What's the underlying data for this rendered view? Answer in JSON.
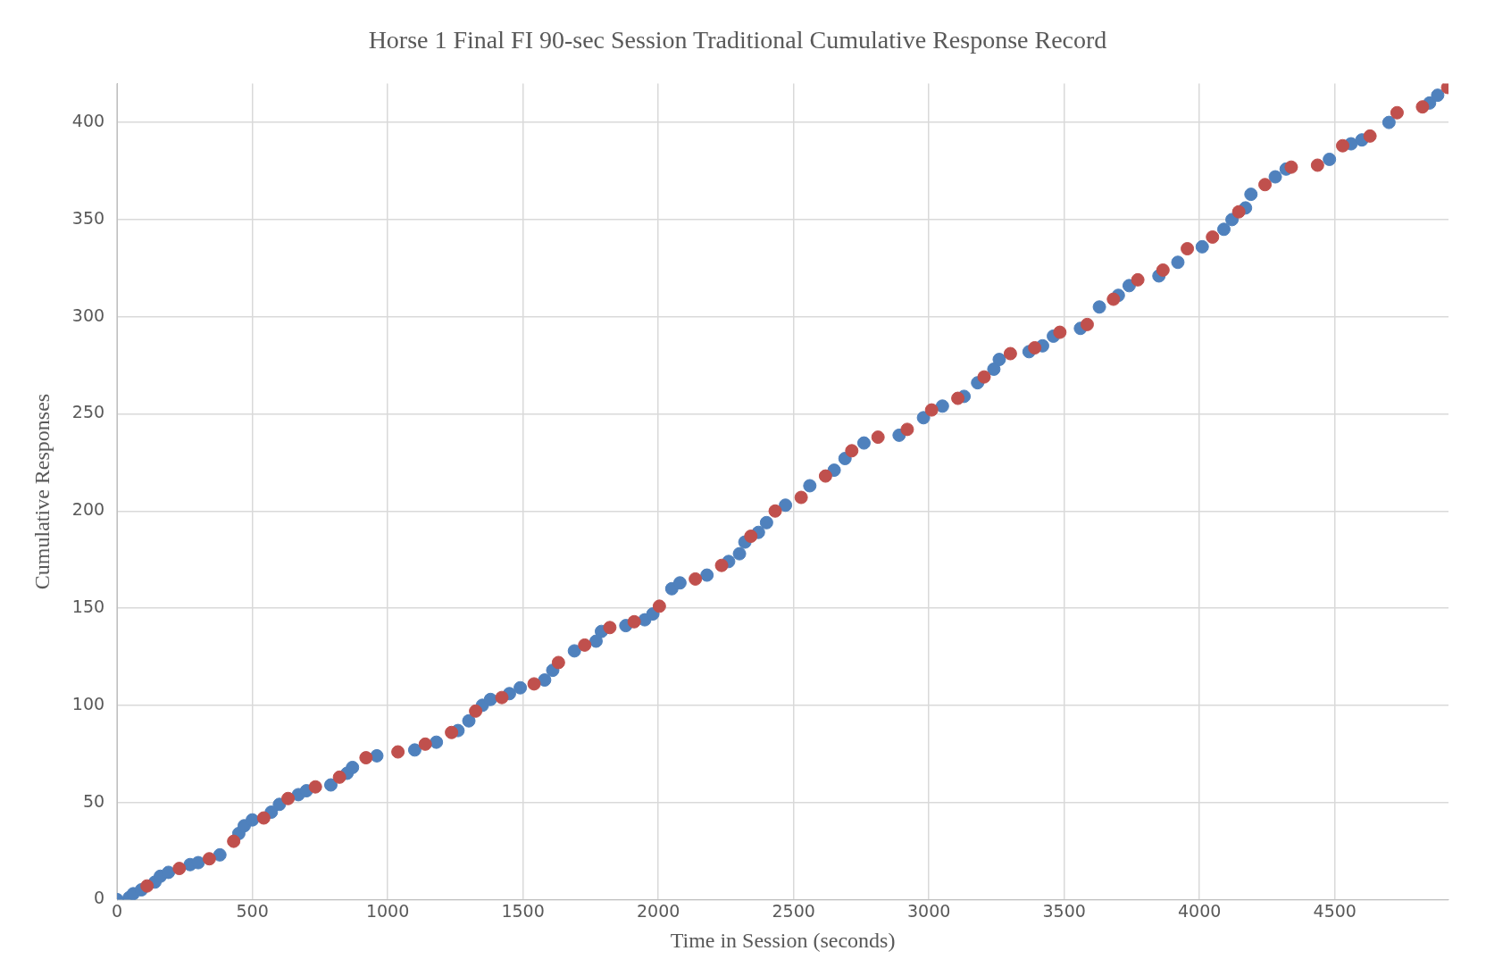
{
  "chart_data": {
    "type": "scatter",
    "title": "Horse 1 Final FI 90-sec Session Traditional Cumulative Response Record",
    "xlabel": "Time in Session (seconds)",
    "ylabel": "Cumulative Responses",
    "xlim": [
      0,
      4920
    ],
    "xticks": [
      0,
      500,
      1000,
      1500,
      2000,
      2500,
      3000,
      3500,
      4000,
      4500
    ],
    "ylim": [
      0,
      420
    ],
    "yticks": [
      0,
      50,
      100,
      150,
      200,
      250,
      300,
      350,
      400
    ],
    "grid": true,
    "legend": false,
    "marker": "circle",
    "series": [
      {
        "color": "#4f81bd",
        "x": [
          0,
          45,
          60,
          90,
          140,
          160,
          190,
          270,
          300,
          380,
          450,
          470,
          500,
          570,
          600,
          670,
          700,
          790,
          850,
          870,
          960,
          1100,
          1180,
          1260,
          1300,
          1350,
          1380,
          1450,
          1490,
          1580,
          1610,
          1690,
          1770,
          1790,
          1880,
          1950,
          1980,
          2050,
          2080,
          2180,
          2260,
          2300,
          2320,
          2370,
          2400,
          2470,
          2560,
          2650,
          2690,
          2760,
          2890,
          2980,
          3050,
          3130,
          3180,
          3240,
          3260,
          3370,
          3420,
          3460,
          3560,
          3630,
          3700,
          3740,
          3850,
          3920,
          4010,
          4090,
          4120,
          4170,
          4190,
          4280,
          4320,
          4480,
          4560,
          4600,
          4700,
          4850,
          4880
        ],
        "values": [
          0,
          1,
          3,
          5,
          9,
          12,
          14,
          18,
          19,
          23,
          34,
          38,
          41,
          45,
          49,
          54,
          56,
          59,
          65,
          68,
          74,
          77,
          81,
          87,
          92,
          100,
          103,
          106,
          109,
          113,
          118,
          128,
          133,
          138,
          141,
          144,
          147,
          160,
          163,
          167,
          174,
          178,
          184,
          189,
          194,
          203,
          213,
          221,
          227,
          235,
          239,
          248,
          254,
          259,
          266,
          273,
          278,
          282,
          285,
          290,
          294,
          305,
          311,
          316,
          321,
          328,
          336,
          345,
          350,
          356,
          363,
          372,
          376,
          381,
          389,
          391,
          400,
          410,
          414
        ]
      },
      {
        "color": "#c0504d",
        "x": [
          111,
          230,
          341,
          431,
          542,
          632,
          733,
          822,
          920,
          1038,
          1139,
          1236,
          1325,
          1422,
          1541,
          1631,
          1728,
          1821,
          1911,
          2004,
          2137,
          2234,
          2342,
          2432,
          2528,
          2618,
          2715,
          2812,
          2920,
          3010,
          3107,
          3204,
          3301,
          3391,
          3484,
          3585,
          3682,
          3772,
          3865,
          3955,
          4048,
          4145,
          4242,
          4339,
          4436,
          4529,
          4630,
          4730,
          4824,
          4917
        ],
        "values": [
          7,
          16,
          21,
          30,
          42,
          52,
          58,
          63,
          73,
          76,
          80,
          86,
          97,
          104,
          111,
          122,
          131,
          140,
          143,
          151,
          165,
          172,
          187,
          200,
          207,
          218,
          231,
          238,
          242,
          252,
          258,
          269,
          281,
          284,
          292,
          296,
          309,
          319,
          324,
          335,
          341,
          354,
          368,
          377,
          378,
          388,
          393,
          405,
          408,
          418
        ]
      }
    ]
  }
}
